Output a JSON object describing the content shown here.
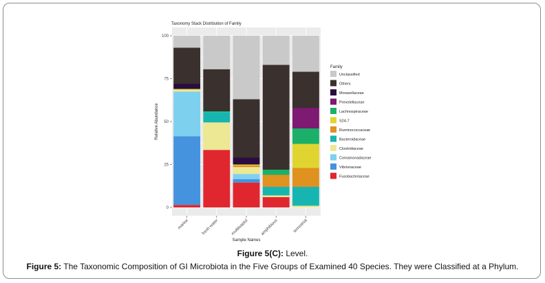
{
  "figure": {
    "subcaption_bold": "Figure 5(C):",
    "subcaption_text": " Level.",
    "caption_bold": "Figure 5:",
    "caption_text": " The Taxonomic Composition of GI Microbiota in the Five Groups of Examined 40 Species. They were Classified at a Phylum."
  },
  "chart_data": {
    "type": "bar",
    "stacked": true,
    "title": "Taxonomy Stack Distribution of Family",
    "xlabel": "Sample Names",
    "ylabel": "Relative Abundance",
    "ylim": [
      0,
      100
    ],
    "yticks": [
      "0",
      "25",
      "50",
      "75",
      "100"
    ],
    "categories": [
      "marine",
      "fresh water",
      "multiloaptul",
      "amphibious",
      "terrestrial"
    ],
    "legend_title": "Family",
    "legend_position": "right",
    "background": "#ebebeb",
    "series": [
      {
        "name": "Fusobacteriaceae",
        "color": "#e0272f",
        "values": [
          1.5,
          33.5,
          14.5,
          6,
          0
        ]
      },
      {
        "name": "Vibrionaceae",
        "color": "#4593df",
        "values": [
          40,
          0,
          2,
          0,
          0
        ]
      },
      {
        "name": "Comamonadaceae",
        "color": "#7dd1ee",
        "values": [
          26,
          0,
          3,
          0,
          0
        ]
      },
      {
        "name": "Clostridiaceae",
        "color": "#ece894",
        "values": [
          1,
          16,
          4,
          1,
          1
        ]
      },
      {
        "name": "Bacteroidaceae",
        "color": "#17b5b1",
        "values": [
          0,
          6,
          0,
          5,
          11
        ]
      },
      {
        "name": "Ruminococcaceae",
        "color": "#df9220",
        "values": [
          0,
          0,
          1,
          7,
          11
        ]
      },
      {
        "name": "S24-7",
        "color": "#e0d530",
        "values": [
          0.5,
          0,
          0.5,
          0,
          14
        ]
      },
      {
        "name": "Lachnospiraceae",
        "color": "#1ab06a",
        "values": [
          0,
          0.5,
          0,
          3,
          9
        ]
      },
      {
        "name": "Prevotellaceae",
        "color": "#7e1a71",
        "values": [
          0,
          0,
          0,
          0,
          12
        ]
      },
      {
        "name": "Moraxellaceae",
        "color": "#2b0c40",
        "values": [
          3,
          0,
          4,
          0,
          0
        ]
      },
      {
        "name": "Others",
        "color": "#3a302d",
        "values": [
          21,
          24.5,
          34,
          61,
          21
        ]
      },
      {
        "name": "Unclassified",
        "color": "#c8c9c8",
        "values": [
          7,
          19.5,
          37,
          17,
          21
        ]
      }
    ]
  }
}
